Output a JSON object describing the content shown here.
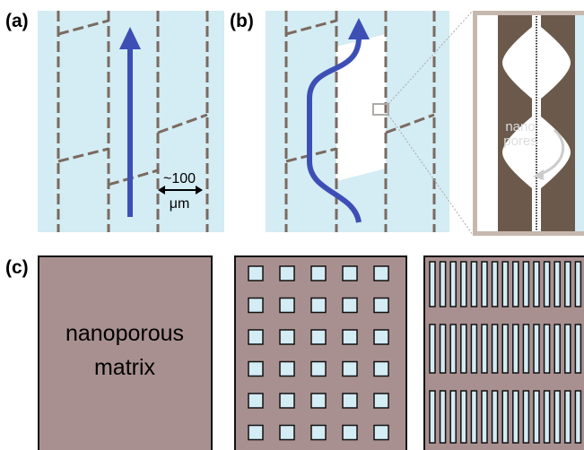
{
  "panels": {
    "a": {
      "label": "(a)",
      "scale_value": "~100",
      "scale_unit": "μm"
    },
    "b": {
      "label": "(b)",
      "inset_text_1": "nano",
      "inset_text_2": "pores"
    },
    "c": {
      "label": "(c)",
      "matrix_text_1": "nanoporous",
      "matrix_text_2": "matrix"
    }
  }
}
